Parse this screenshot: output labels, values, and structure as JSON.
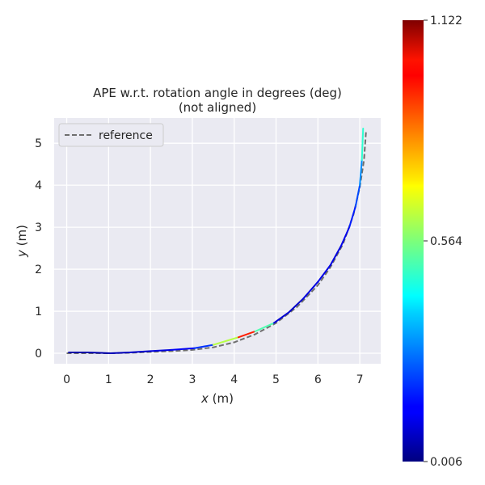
{
  "chart_data": {
    "type": "line",
    "title": "APE w.r.t. rotation angle in degrees (deg)",
    "subtitle": "(not aligned)",
    "xlabel_var": "x",
    "xlabel_unit": " (m)",
    "ylabel_var": "y",
    "ylabel_unit": " (m)",
    "xlim": [
      -0.3,
      7.5
    ],
    "ylim": [
      -0.25,
      5.6
    ],
    "xticks": [
      0,
      1,
      2,
      3,
      4,
      5,
      6,
      7
    ],
    "yticks": [
      0,
      1,
      2,
      3,
      4,
      5
    ],
    "xtick_labels": [
      "0",
      "1",
      "2",
      "3",
      "4",
      "5",
      "6",
      "7"
    ],
    "ytick_labels": [
      "0",
      "1",
      "2",
      "3",
      "4",
      "5"
    ],
    "grid": true,
    "legend": {
      "position": "top-left",
      "entries": [
        "reference"
      ]
    },
    "series": [
      {
        "name": "reference",
        "style": "dashed",
        "color": "#6e6e6e",
        "x": [
          0.0,
          0.5,
          1.0,
          1.5,
          2.0,
          2.5,
          3.0,
          3.5,
          4.0,
          4.5,
          5.0,
          5.5,
          6.0,
          6.3,
          6.6,
          6.85,
          7.0,
          7.1,
          7.15
        ],
        "y": [
          0.0,
          0.0,
          0.0,
          0.01,
          0.03,
          0.05,
          0.08,
          0.14,
          0.26,
          0.45,
          0.72,
          1.1,
          1.62,
          2.05,
          2.6,
          3.3,
          3.95,
          4.6,
          5.3
        ]
      },
      {
        "x": [
          0.05,
          0.5,
          1.05,
          1.5,
          2.0,
          2.5,
          3.05,
          3.5,
          4.1,
          4.5,
          4.95,
          5.3,
          5.65,
          6.0,
          6.3,
          6.55,
          6.75,
          6.9,
          7.0,
          7.05,
          7.08
        ],
        "y": [
          0.02,
          0.02,
          0.0,
          0.02,
          0.05,
          0.08,
          0.12,
          0.2,
          0.38,
          0.52,
          0.72,
          0.97,
          1.3,
          1.7,
          2.1,
          2.55,
          3.0,
          3.5,
          4.0,
          4.6,
          5.35
        ],
        "ape": [
          0.05,
          0.05,
          0.06,
          0.08,
          0.1,
          0.12,
          0.15,
          0.25,
          1.0,
          0.9,
          0.12,
          0.08,
          0.1,
          0.12,
          0.12,
          0.1,
          0.15,
          0.2,
          0.25,
          0.35,
          0.6
        ]
      }
    ],
    "colorbar": {
      "min": 0.006,
      "max": 1.122,
      "ticks": [
        0.006,
        0.564,
        1.122
      ],
      "tick_labels": [
        "0.006",
        "0.564",
        "1.122"
      ],
      "colormap": "jet"
    }
  }
}
